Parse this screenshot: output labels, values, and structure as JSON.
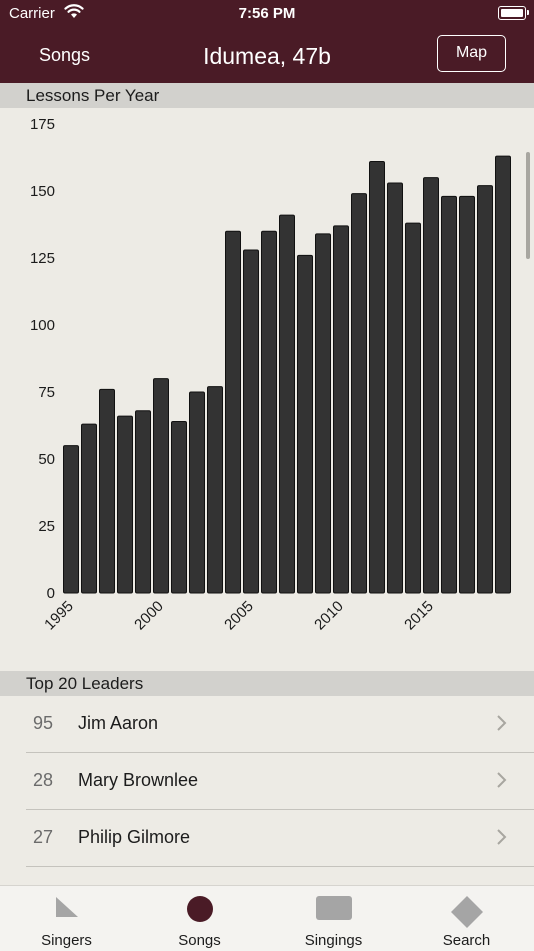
{
  "status_bar": {
    "carrier": "Carrier",
    "time": "7:56 PM"
  },
  "nav": {
    "back_label": "Songs",
    "title": "Idumea, 47b",
    "map_label": "Map"
  },
  "sections": {
    "lessons_per_year": "Lessons Per Year",
    "top_leaders": "Top 20 Leaders"
  },
  "chart_data": {
    "type": "bar",
    "title": "Lessons Per Year",
    "xlabel": "",
    "ylabel": "",
    "ylim": [
      0,
      175
    ],
    "yticks": [
      "0",
      "25",
      "50",
      "75",
      "100",
      "125",
      "150",
      "175"
    ],
    "xtick_labels": [
      "1995",
      "2000",
      "2005",
      "2010",
      "2015"
    ],
    "categories": [
      "1995",
      "1996",
      "1997",
      "1998",
      "1999",
      "2000",
      "2001",
      "2002",
      "2003",
      "2004",
      "2005",
      "2006",
      "2007",
      "2008",
      "2009",
      "2010",
      "2011",
      "2012",
      "2013",
      "2014",
      "2015",
      "2016",
      "2017",
      "2018",
      "2019"
    ],
    "values": [
      55,
      63,
      76,
      66,
      68,
      80,
      64,
      75,
      77,
      135,
      128,
      135,
      141,
      126,
      134,
      137,
      149,
      161,
      153,
      138,
      155,
      148,
      148,
      152,
      163
    ],
    "bar_color": "#333333",
    "grid": false
  },
  "leaders": [
    {
      "count": "95",
      "name": "Jim Aaron"
    },
    {
      "count": "28",
      "name": "Mary Brownlee"
    },
    {
      "count": "27",
      "name": "Philip Gilmore"
    }
  ],
  "tabs": [
    {
      "label": "Singers",
      "icon": "triangle-icon"
    },
    {
      "label": "Songs",
      "icon": "circle-icon"
    },
    {
      "label": "Singings",
      "icon": "rectangle-icon"
    },
    {
      "label": "Search",
      "icon": "diamond-icon"
    }
  ],
  "colors": {
    "brand": "#4a1b26",
    "background": "#edebe5",
    "section_header": "#d2d1cd",
    "tab_icon": "#a5a5a5"
  }
}
